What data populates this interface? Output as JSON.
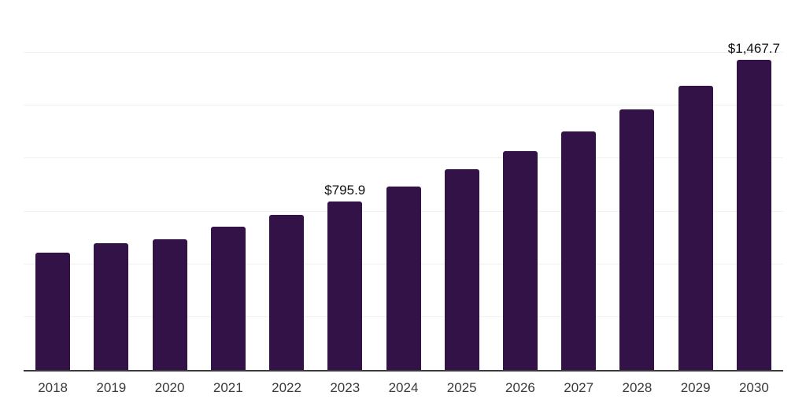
{
  "chart_data": {
    "type": "bar",
    "title": "",
    "xlabel": "",
    "ylabel": "",
    "categories": [
      "2018",
      "2019",
      "2020",
      "2021",
      "2022",
      "2023",
      "2024",
      "2025",
      "2026",
      "2027",
      "2028",
      "2029",
      "2030"
    ],
    "values": [
      555.0,
      600.0,
      617.5,
      676.5,
      734.5,
      795.9,
      868.6,
      948.0,
      1034.6,
      1129.2,
      1232.4,
      1345.0,
      1467.7
    ],
    "point_labels": [
      "",
      "",
      "",
      "",
      "",
      "$795.9",
      "",
      "",
      "",
      "",
      "",
      "",
      "$1,467.7"
    ],
    "ylim": [
      0,
      1750
    ],
    "gridline_step": 250,
    "grid": true,
    "legend": false,
    "y_tick_labels_visible": false,
    "colors": {
      "bar": "#331247",
      "axis_line": "#3b3b3b",
      "gridline": "#f0f0f0",
      "tick_label": "#3a3a3a",
      "data_label": "#111111",
      "background": "#ffffff"
    }
  }
}
